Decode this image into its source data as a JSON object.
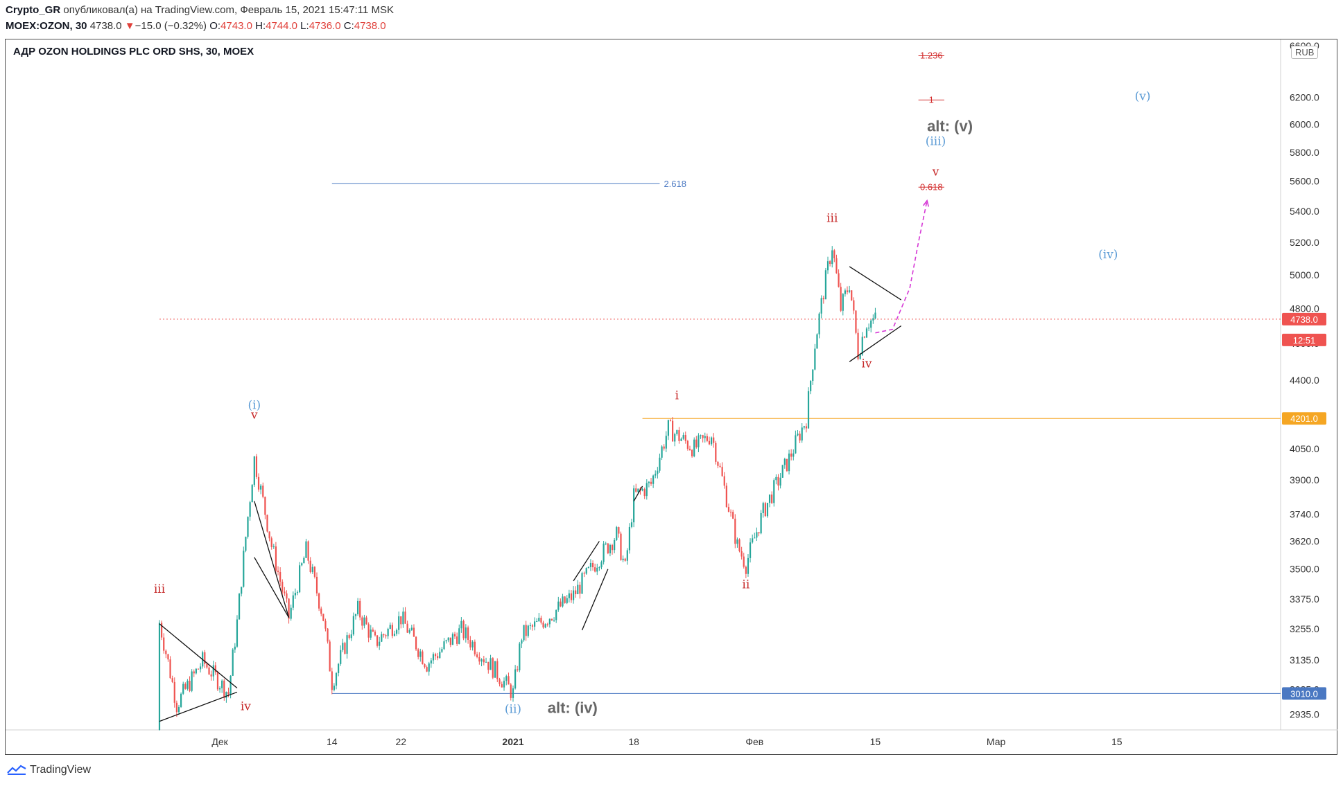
{
  "header": {
    "author": "Crypto_GR",
    "published_text": "опубликовал(а) на TradingView.com, Февраль 15, 2021 15:47:11 MSK",
    "symbol": "MOEX:OZON, 30",
    "last": "4738.0",
    "arrow": "▼",
    "change": "−15.0 (−0.32%)",
    "open_label": "O:",
    "open": "4743.0",
    "high_label": "H:",
    "high": "4744.0",
    "low_label": "L:",
    "low": "4736.0",
    "close_label": "C:",
    "close": "4738.0"
  },
  "instrument_title": "АДР OZON HOLDINGS PLC ORD SHS, 30, MOEX",
  "currency": "RUB",
  "footer": {
    "brand": "TradingView"
  },
  "colors": {
    "up": "#26a69a",
    "down": "#ef5350",
    "red_label": "#c62828",
    "blue_label": "#5b9bd5",
    "gray_label": "#666666",
    "orange_line": "#f5a623",
    "blue_line": "#4a78c2",
    "magenta": "#d63ad6"
  },
  "chart_data": {
    "type": "candlestick",
    "y_axis": {
      "scale": "log",
      "ylim": [
        2880,
        6650
      ],
      "ticks": [
        "6600.0",
        "6200.0",
        "6000.0",
        "5800.0",
        "5600.0",
        "5400.0",
        "5200.0",
        "5000.0",
        "4800.0",
        "4600.0",
        "4400.0",
        "4050.0",
        "3900.0",
        "3740.0",
        "3620.0",
        "3500.0",
        "3375.0",
        "3255.0",
        "3135.0",
        "3025.0",
        "2935.0"
      ]
    },
    "x_axis": {
      "ticks": [
        {
          "label": "Дек",
          "date": "2020-12-01"
        },
        {
          "label": "14",
          "date": "2020-12-14"
        },
        {
          "label": "22",
          "date": "2020-12-22"
        },
        {
          "label": "2021",
          "date": "2021-01-04"
        },
        {
          "label": "18",
          "date": "2021-01-18"
        },
        {
          "label": "Фев",
          "date": "2021-02-01"
        },
        {
          "label": "15",
          "date": "2021-02-15"
        },
        {
          "label": "Мар",
          "date": "2021-03-01"
        },
        {
          "label": "15",
          "date": "2021-03-15"
        }
      ],
      "xlim": [
        "2020-11-24",
        "2021-03-27"
      ]
    },
    "price_tags": [
      {
        "value": "4738.0",
        "color": "#ef5350"
      },
      {
        "value": "12:51",
        "color": "#ef5350"
      },
      {
        "value": "4201.0",
        "color": "#f5a623"
      },
      {
        "value": "3010.0",
        "color": "#4a78c2"
      }
    ],
    "path": [
      {
        "date": "2020-11-24",
        "price": 2880
      },
      {
        "date": "2020-11-24",
        "price": 3280
      },
      {
        "date": "2020-11-26",
        "price": 2970
      },
      {
        "date": "2020-11-29",
        "price": 3130
      },
      {
        "date": "2020-12-02",
        "price": 3010
      },
      {
        "date": "2020-12-03",
        "price": 3280
      },
      {
        "date": "2020-12-05",
        "price": 4000
      },
      {
        "date": "2020-12-07",
        "price": 3600
      },
      {
        "date": "2020-12-09",
        "price": 3300
      },
      {
        "date": "2020-12-11",
        "price": 3580
      },
      {
        "date": "2020-12-13",
        "price": 3300
      },
      {
        "date": "2020-12-14",
        "price": 3050
      },
      {
        "date": "2020-12-17",
        "price": 3330
      },
      {
        "date": "2020-12-19",
        "price": 3200
      },
      {
        "date": "2020-12-22",
        "price": 3300
      },
      {
        "date": "2020-12-25",
        "price": 3120
      },
      {
        "date": "2020-12-29",
        "price": 3250
      },
      {
        "date": "2021-01-04",
        "price": 3010
      },
      {
        "date": "2021-01-05",
        "price": 3230
      },
      {
        "date": "2021-01-08",
        "price": 3300
      },
      {
        "date": "2021-01-11",
        "price": 3390
      },
      {
        "date": "2021-01-14",
        "price": 3550
      },
      {
        "date": "2021-01-16",
        "price": 3650
      },
      {
        "date": "2021-01-17",
        "price": 3500
      },
      {
        "date": "2021-01-18",
        "price": 3820
      },
      {
        "date": "2021-01-20",
        "price": 3880
      },
      {
        "date": "2021-01-22",
        "price": 4150
      },
      {
        "date": "2021-01-25",
        "price": 4050
      },
      {
        "date": "2021-01-27",
        "price": 4120
      },
      {
        "date": "2021-01-30",
        "price": 3600
      },
      {
        "date": "2021-01-31",
        "price": 3520
      },
      {
        "date": "2021-02-02",
        "price": 3750
      },
      {
        "date": "2021-02-05",
        "price": 4000
      },
      {
        "date": "2021-02-07",
        "price": 4200
      },
      {
        "date": "2021-02-08",
        "price": 4600
      },
      {
        "date": "2021-02-09",
        "price": 4900
      },
      {
        "date": "2021-02-10",
        "price": 5180
      },
      {
        "date": "2021-02-11",
        "price": 4800
      },
      {
        "date": "2021-02-12",
        "price": 4950
      },
      {
        "date": "2021-02-13",
        "price": 4550
      },
      {
        "date": "2021-02-14",
        "price": 4720
      },
      {
        "date": "2021-02-15",
        "price": 4738
      }
    ],
    "horizontal_lines": [
      {
        "price": 4738.0,
        "style": "dotted",
        "color": "#ef5350",
        "from": "2020-11-24",
        "to": "2021-03-27"
      },
      {
        "price": 4201.0,
        "style": "solid",
        "color": "#f5a623",
        "from": "2021-01-19",
        "to": "2021-03-27"
      },
      {
        "price": 3010.0,
        "style": "solid",
        "color": "#4a78c2",
        "from": "2020-12-14",
        "to": "2021-03-27"
      }
    ],
    "fib_levels": [
      {
        "label": "1.236",
        "price": 6520,
        "from": "2021-02-20",
        "to": "2021-02-23",
        "color": "#d32f2f"
      },
      {
        "label": "1",
        "price": 6180,
        "from": "2021-02-20",
        "to": "2021-02-23",
        "color": "#d32f2f"
      },
      {
        "label": "0.618",
        "price": 5560,
        "from": "2021-02-20",
        "to": "2021-02-23",
        "color": "#d32f2f"
      },
      {
        "label": "2.618",
        "price": 5585,
        "from": "2020-12-14",
        "to": "2021-01-21",
        "color": "#4a78c2"
      }
    ],
    "trendlines": [
      {
        "from": [
          "2020-11-24",
          3275
        ],
        "to": [
          "2020-12-03",
          3030
        ]
      },
      {
        "from": [
          "2020-11-24",
          2910
        ],
        "to": [
          "2020-12-03",
          3015
        ]
      },
      {
        "from": [
          "2020-12-05",
          3800
        ],
        "to": [
          "2020-12-09",
          3300
        ]
      },
      {
        "from": [
          "2020-12-05",
          3550
        ],
        "to": [
          "2020-12-09",
          3300
        ]
      },
      {
        "from": [
          "2021-01-11",
          3450
        ],
        "to": [
          "2021-01-14",
          3620
        ]
      },
      {
        "from": [
          "2021-01-12",
          3250
        ],
        "to": [
          "2021-01-15",
          3500
        ]
      },
      {
        "from": [
          "2021-01-18",
          3800
        ],
        "to": [
          "2021-01-19",
          3870
        ]
      },
      {
        "from": [
          "2021-02-12",
          5050
        ],
        "to": [
          "2021-02-18",
          4850
        ]
      },
      {
        "from": [
          "2021-02-12",
          4500
        ],
        "to": [
          "2021-02-18",
          4700
        ]
      }
    ],
    "projection": {
      "color": "#d63ad6",
      "points": [
        [
          "2021-02-15",
          4660
        ],
        [
          "2021-02-17",
          4680
        ],
        [
          "2021-02-19",
          4920
        ],
        [
          "2021-02-20",
          5200
        ],
        [
          "2021-02-21",
          5470
        ]
      ]
    },
    "wave_labels": [
      {
        "text": "iii",
        "date": "2020-11-24",
        "price": 3400,
        "color": "#c62828"
      },
      {
        "text": "iv",
        "date": "2020-12-04",
        "price": 2950,
        "color": "#c62828"
      },
      {
        "text": "(i)",
        "date": "2020-12-05",
        "price": 4250,
        "color": "#5b9bd5"
      },
      {
        "text": "v",
        "date": "2020-12-05",
        "price": 4200,
        "color": "#c62828"
      },
      {
        "text": "(ii)",
        "date": "2021-01-04",
        "price": 2940,
        "color": "#5b9bd5"
      },
      {
        "text": "alt: (iv)",
        "date": "2021-01-08",
        "price": 2940,
        "color": "#666666"
      },
      {
        "text": "i",
        "date": "2021-01-23",
        "price": 4300,
        "color": "#c62828"
      },
      {
        "text": "ii",
        "date": "2021-01-31",
        "price": 3420,
        "color": "#c62828"
      },
      {
        "text": "iii",
        "date": "2021-02-10",
        "price": 5330,
        "color": "#c62828"
      },
      {
        "text": "iv",
        "date": "2021-02-14",
        "price": 4470,
        "color": "#c62828"
      },
      {
        "text": "alt: (v)",
        "date": "2021-02-21",
        "price": 5950,
        "color": "#666666"
      },
      {
        "text": "(iii)",
        "date": "2021-02-22",
        "price": 5850,
        "color": "#5b9bd5"
      },
      {
        "text": "v",
        "date": "2021-02-22",
        "price": 5640,
        "color": "#c62828"
      },
      {
        "text": "(iv)",
        "date": "2021-03-14",
        "price": 5100,
        "color": "#5b9bd5"
      },
      {
        "text": "(v)",
        "date": "2021-03-18",
        "price": 6180,
        "color": "#5b9bd5"
      }
    ]
  }
}
